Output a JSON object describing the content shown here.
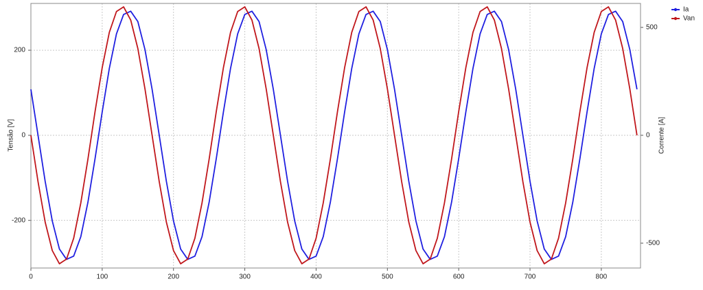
{
  "chart_data": {
    "type": "line",
    "y_label": "Tensão [V]",
    "y2_label": "Corrente [A]",
    "x": [
      0,
      10,
      20,
      30,
      40,
      50,
      60,
      70,
      80,
      90,
      100,
      110,
      120,
      130,
      140,
      150,
      160,
      170,
      180,
      190,
      200,
      210,
      220,
      230,
      240,
      250,
      260,
      270,
      280,
      290,
      300,
      310,
      320,
      330,
      340,
      350,
      360,
      370,
      380,
      390,
      400,
      410,
      420,
      430,
      440,
      450,
      460,
      470,
      480,
      490,
      500,
      510,
      520,
      530,
      540,
      550,
      560,
      570,
      580,
      590,
      600,
      610,
      620,
      630,
      640,
      650,
      660,
      670,
      680,
      690,
      700,
      710,
      720,
      730,
      740,
      750,
      760,
      770,
      780,
      790,
      800,
      810,
      820,
      830,
      840,
      850
    ],
    "series": [
      {
        "name": "Ia",
        "color": "#1f1fe0",
        "axis": "y2",
        "values": [
          213,
          0,
          -213,
          -397,
          -527,
          -575,
          -560,
          -470,
          -310,
          -108,
          108,
          310,
          470,
          560,
          575,
          527,
          397,
          213,
          0,
          -213,
          -397,
          -527,
          -575,
          -560,
          -470,
          -310,
          -108,
          108,
          310,
          470,
          560,
          575,
          527,
          397,
          213,
          0,
          -213,
          -397,
          -527,
          -575,
          -560,
          -470,
          -310,
          -108,
          108,
          310,
          470,
          560,
          575,
          527,
          397,
          213,
          0,
          -213,
          -397,
          -527,
          -575,
          -560,
          -470,
          -310,
          -108,
          108,
          310,
          470,
          560,
          575,
          527,
          397,
          213,
          0,
          -213,
          -397,
          -527,
          -575,
          -560,
          -470,
          -310,
          -108,
          108,
          310,
          470,
          560,
          575,
          527,
          397,
          213
        ]
      },
      {
        "name": "Van",
        "color": "#c0161b",
        "axis": "y",
        "values": [
          0,
          -109,
          -204,
          -271,
          -302,
          -291,
          -242,
          -159,
          -56,
          56,
          159,
          242,
          291,
          302,
          271,
          204,
          109,
          0,
          -109,
          -204,
          -271,
          -302,
          -291,
          -242,
          -159,
          -56,
          56,
          159,
          242,
          291,
          302,
          271,
          204,
          109,
          0,
          -109,
          -204,
          -271,
          -302,
          -291,
          -242,
          -159,
          -56,
          56,
          159,
          242,
          291,
          302,
          271,
          204,
          109,
          0,
          -109,
          -204,
          -271,
          -302,
          -291,
          -242,
          -159,
          -56,
          56,
          159,
          242,
          291,
          302,
          271,
          204,
          109,
          0,
          -109,
          -204,
          -271,
          -302,
          -291,
          -242,
          -159,
          -56,
          56,
          159,
          242,
          291,
          302,
          271,
          204,
          109,
          0
        ]
      }
    ],
    "xlim": [
      0,
      855
    ],
    "xticks": [
      0,
      100,
      200,
      300,
      400,
      500,
      600,
      700,
      800
    ],
    "ylim": [
      -312,
      310
    ],
    "yticks": [
      -200,
      0,
      200
    ],
    "y2lim": [
      -615,
      611
    ],
    "y2ticks": [
      -500,
      0,
      500
    ],
    "grid": true
  }
}
